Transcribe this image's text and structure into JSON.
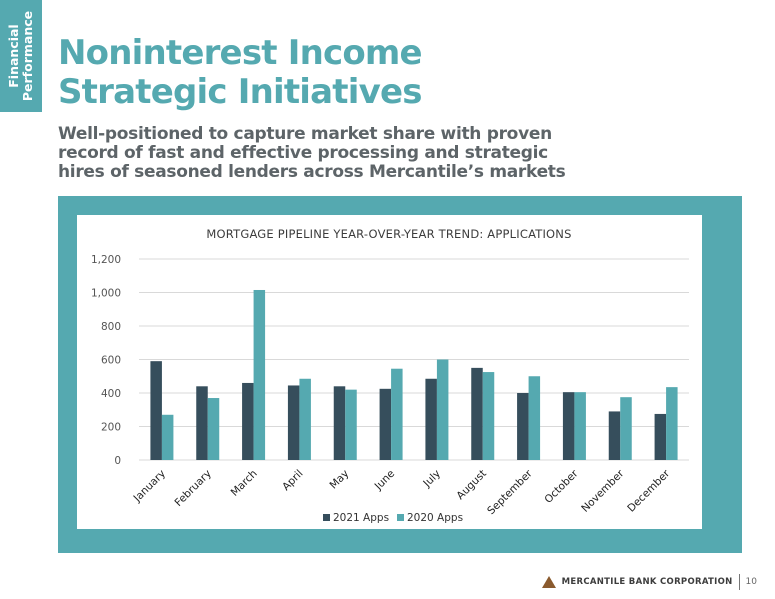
{
  "side_tab": {
    "line1": "Financial",
    "line2": "Performance"
  },
  "title": {
    "line1": "Noninterest Income",
    "line2": "Strategic Initiatives"
  },
  "subtitle": {
    "line1": "Well-positioned to capture market share with proven",
    "line2": "record of fast and effective processing and strategic",
    "line3": "hires of seasoned lenders across Mercantile’s markets"
  },
  "colors": {
    "accent": "#55a9b0",
    "series_2021": "#364e5c",
    "series_2020": "#55a9b0",
    "logo": "#8a5a2e"
  },
  "chart_data": {
    "type": "bar",
    "title": "MORTGAGE PIPELINE YEAR-OVER-YEAR TREND: APPLICATIONS",
    "categories": [
      "January",
      "February",
      "March",
      "April",
      "May",
      "June",
      "July",
      "August",
      "September",
      "October",
      "November",
      "December"
    ],
    "series": [
      {
        "name": "2021 Apps",
        "values": [
          590,
          440,
          460,
          445,
          440,
          425,
          485,
          550,
          400,
          405,
          290,
          275
        ]
      },
      {
        "name": "2020 Apps",
        "values": [
          270,
          370,
          1015,
          485,
          420,
          545,
          600,
          525,
          500,
          405,
          375,
          435
        ]
      }
    ],
    "yticks": [
      "0",
      "200",
      "400",
      "600",
      "800",
      "1,000",
      "1,200"
    ],
    "ylim": [
      0,
      1200
    ],
    "grid": true,
    "legend_position": "bottom"
  },
  "footer": {
    "company": "MERCANTILE BANK CORPORATION",
    "page": "10"
  }
}
